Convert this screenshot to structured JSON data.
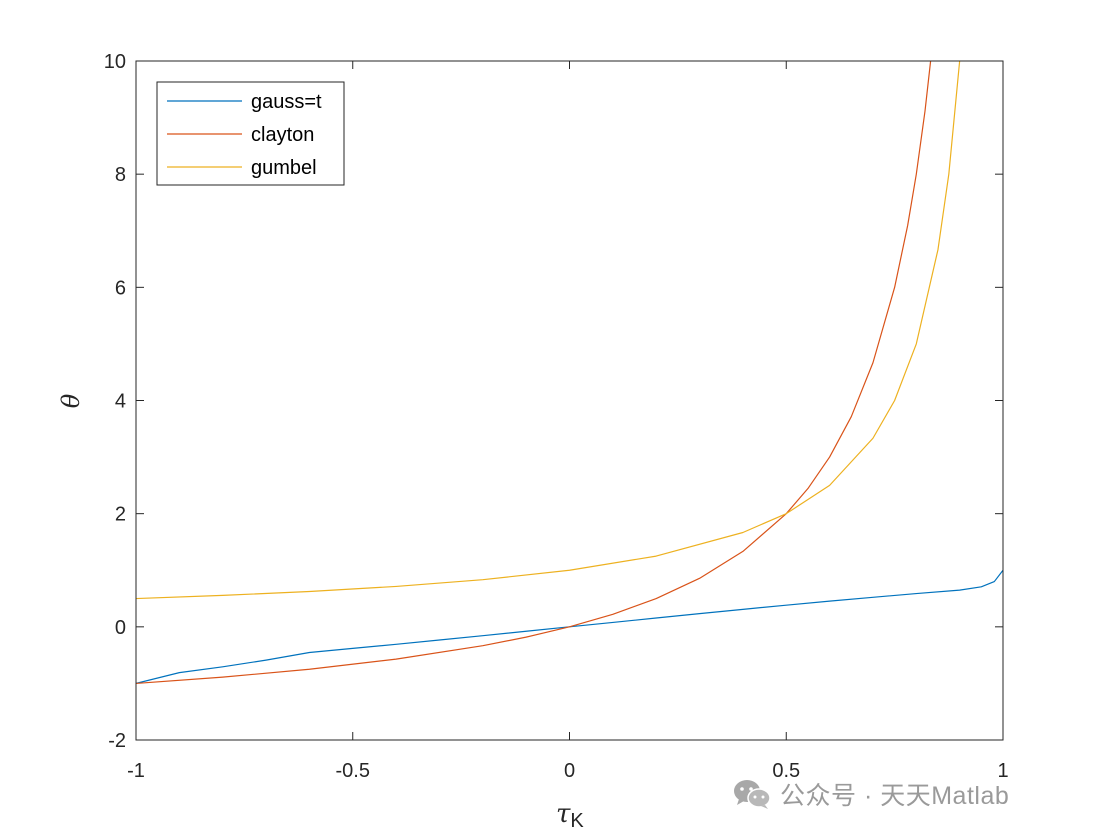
{
  "chart_data": {
    "type": "line",
    "xlabel": "τ",
    "xlabel_subscript": "K",
    "ylabel": "θ",
    "xlim": [
      -1,
      1
    ],
    "ylim": [
      -2,
      10
    ],
    "x_ticks": [
      -1,
      -0.5,
      0,
      0.5,
      1
    ],
    "x_tick_labels": [
      "-1",
      "-0.5",
      "0",
      "0.5",
      "1"
    ],
    "y_ticks": [
      -2,
      0,
      2,
      4,
      6,
      8,
      10
    ],
    "y_tick_labels": [
      "-2",
      "0",
      "2",
      "4",
      "6",
      "8",
      "10"
    ],
    "grid": false,
    "legend_position": "top-left",
    "series": [
      {
        "name": "gauss=t",
        "color": "#0072BD",
        "points": [
          [
            -1,
            -1
          ],
          [
            -0.9,
            -0.809
          ],
          [
            -0.8,
            -0.707
          ],
          [
            -0.7,
            -0.588
          ],
          [
            -0.6,
            -0.454
          ],
          [
            -0.5,
            -0.381
          ],
          [
            -0.4,
            -0.309
          ],
          [
            -0.3,
            -0.233
          ],
          [
            -0.2,
            -0.156
          ],
          [
            -0.1,
            -0.078
          ],
          [
            0,
            0
          ],
          [
            0.1,
            0.078
          ],
          [
            0.2,
            0.156
          ],
          [
            0.3,
            0.233
          ],
          [
            0.4,
            0.309
          ],
          [
            0.5,
            0.383
          ],
          [
            0.6,
            0.454
          ],
          [
            0.7,
            0.522
          ],
          [
            0.8,
            0.588
          ],
          [
            0.9,
            0.649
          ],
          [
            0.95,
            0.707
          ],
          [
            0.98,
            0.8
          ],
          [
            1,
            1
          ]
        ]
      },
      {
        "name": "clayton",
        "color": "#D95319",
        "points": [
          [
            -1,
            -1
          ],
          [
            -0.8,
            -0.889
          ],
          [
            -0.6,
            -0.75
          ],
          [
            -0.4,
            -0.571
          ],
          [
            -0.2,
            -0.333
          ],
          [
            -0.1,
            -0.182
          ],
          [
            0,
            0
          ],
          [
            0.1,
            0.222
          ],
          [
            0.2,
            0.5
          ],
          [
            0.3,
            0.857
          ],
          [
            0.4,
            1.333
          ],
          [
            0.5,
            2
          ],
          [
            0.55,
            2.444
          ],
          [
            0.6,
            3
          ],
          [
            0.65,
            3.714
          ],
          [
            0.7,
            4.667
          ],
          [
            0.75,
            6
          ],
          [
            0.78,
            7.091
          ],
          [
            0.8,
            8
          ],
          [
            0.82,
            9.111
          ],
          [
            0.833,
            10
          ]
        ]
      },
      {
        "name": "gumbel",
        "color": "#EDB120",
        "points": [
          [
            -1,
            0.5
          ],
          [
            -0.8,
            0.556
          ],
          [
            -0.6,
            0.625
          ],
          [
            -0.4,
            0.714
          ],
          [
            -0.2,
            0.833
          ],
          [
            0,
            1
          ],
          [
            0.2,
            1.25
          ],
          [
            0.4,
            1.667
          ],
          [
            0.5,
            2
          ],
          [
            0.6,
            2.5
          ],
          [
            0.7,
            3.333
          ],
          [
            0.75,
            4
          ],
          [
            0.8,
            5
          ],
          [
            0.85,
            6.667
          ],
          [
            0.875,
            8
          ],
          [
            0.9,
            10
          ]
        ]
      }
    ]
  },
  "watermark": {
    "icon": "wechat-icon",
    "text": "公众号 · 天天Matlab"
  }
}
